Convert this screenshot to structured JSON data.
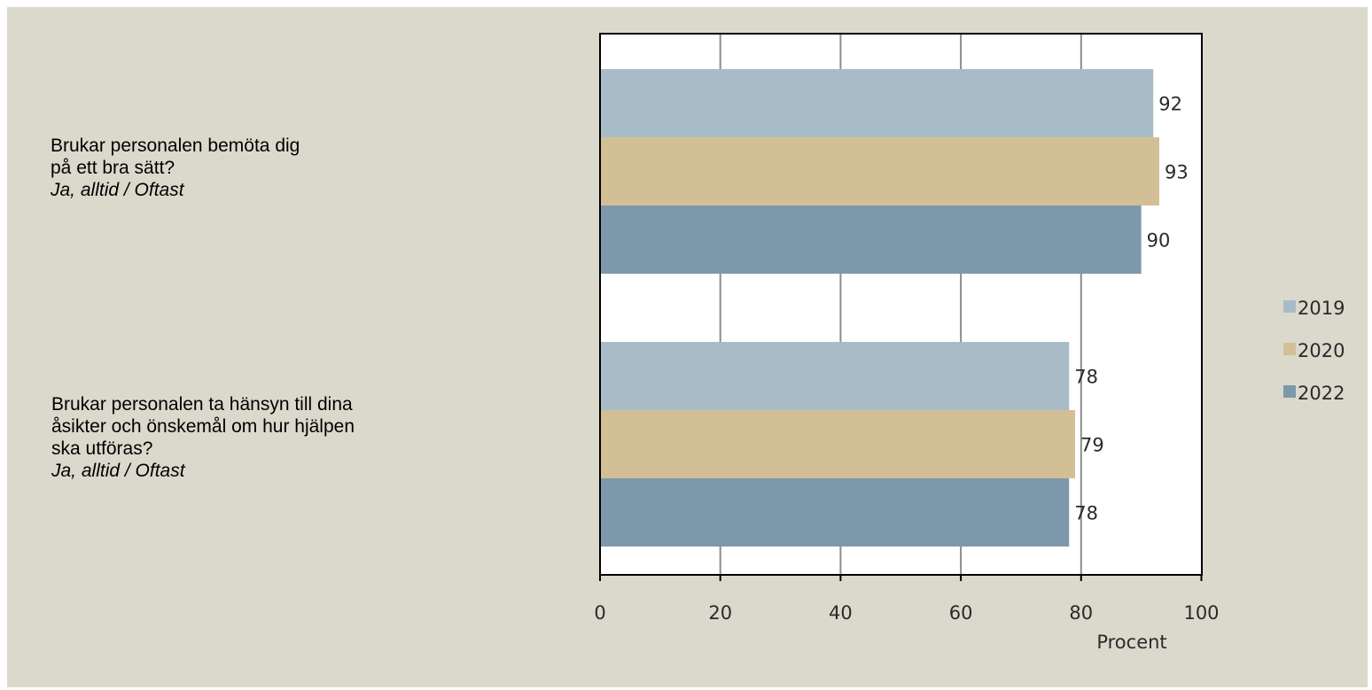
{
  "questions": [
    {
      "lines": [
        "Brukar personalen bemöta dig",
        "på ett bra sätt?"
      ],
      "answer": "Ja, alltid / Oftast"
    },
    {
      "lines": [
        "Brukar personalen ta hänsyn till dina",
        "åsikter och önskemål om hur hjälpen",
        "ska utföras?"
      ],
      "answer": "Ja, alltid / Oftast"
    }
  ],
  "chart_data": {
    "type": "bar",
    "orientation": "horizontal",
    "categories": [
      "Brukar personalen bemöta dig på ett bra sätt? Ja, alltid / Oftast",
      "Brukar personalen ta hänsyn till dina åsikter och önskemål om hur hjälpen ska utföras? Ja, alltid / Oftast"
    ],
    "series": [
      {
        "name": "2019",
        "values": [
          92,
          78
        ],
        "color": "#a8bcc7"
      },
      {
        "name": "2020",
        "values": [
          93,
          79
        ],
        "color": "#d3bf95"
      },
      {
        "name": "2022",
        "values": [
          90,
          78
        ],
        "color": "#7d98aa"
      }
    ],
    "xlabel": "Procent",
    "xlim": [
      0,
      100
    ],
    "xticks": [
      "0",
      "20",
      "40",
      "60",
      "80",
      "100"
    ],
    "grid": true,
    "legend_position": "right",
    "data_labels": true
  }
}
